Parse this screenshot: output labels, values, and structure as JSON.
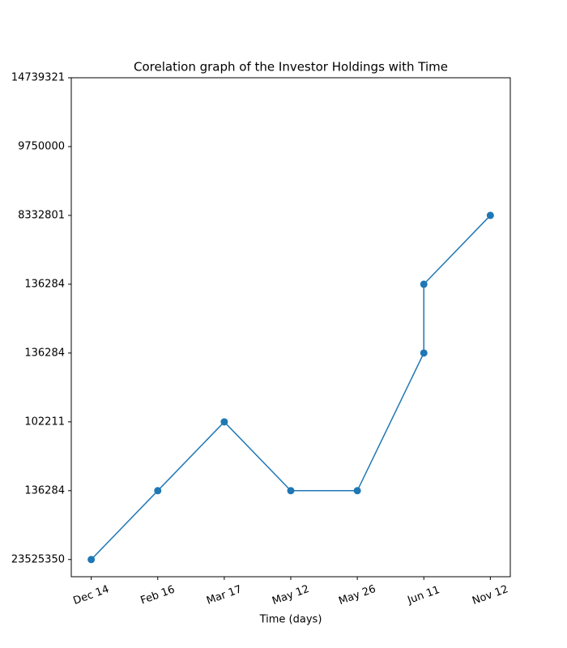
{
  "chart_data": {
    "type": "line",
    "title": "Corelation graph of the Investor Holdings with Time",
    "x_label": "Time (days)",
    "x": [
      0,
      1,
      2,
      3,
      4,
      5,
      5,
      6
    ],
    "series": [
      {
        "color": "#1f77b4",
        "values": [
          0,
          1,
          2,
          1,
          1,
          3,
          4,
          5
        ]
      }
    ],
    "xlim": [
      -0.3,
      6.3
    ],
    "xticks": [
      {
        "value": 0,
        "label": "Dec 14"
      },
      {
        "value": 1,
        "label": "Feb 16"
      },
      {
        "value": 2,
        "label": "Mar 17"
      },
      {
        "value": 3,
        "label": "May 12"
      },
      {
        "value": 4,
        "label": "May 26"
      },
      {
        "value": 5,
        "label": "Jun 11"
      },
      {
        "value": 6,
        "label": "Nov 12"
      }
    ],
    "ylim": [
      -0.25,
      7
    ],
    "yticks": [
      {
        "value": 0,
        "label": "23525350"
      },
      {
        "value": 1,
        "label": "136284"
      },
      {
        "value": 2,
        "label": "102211"
      },
      {
        "value": 3,
        "label": "136284"
      },
      {
        "value": 4,
        "label": "136284"
      },
      {
        "value": 5,
        "label": "8332801"
      },
      {
        "value": 6,
        "label": "9750000"
      },
      {
        "value": 7,
        "label": "14739321"
      }
    ],
    "markers": true
  }
}
